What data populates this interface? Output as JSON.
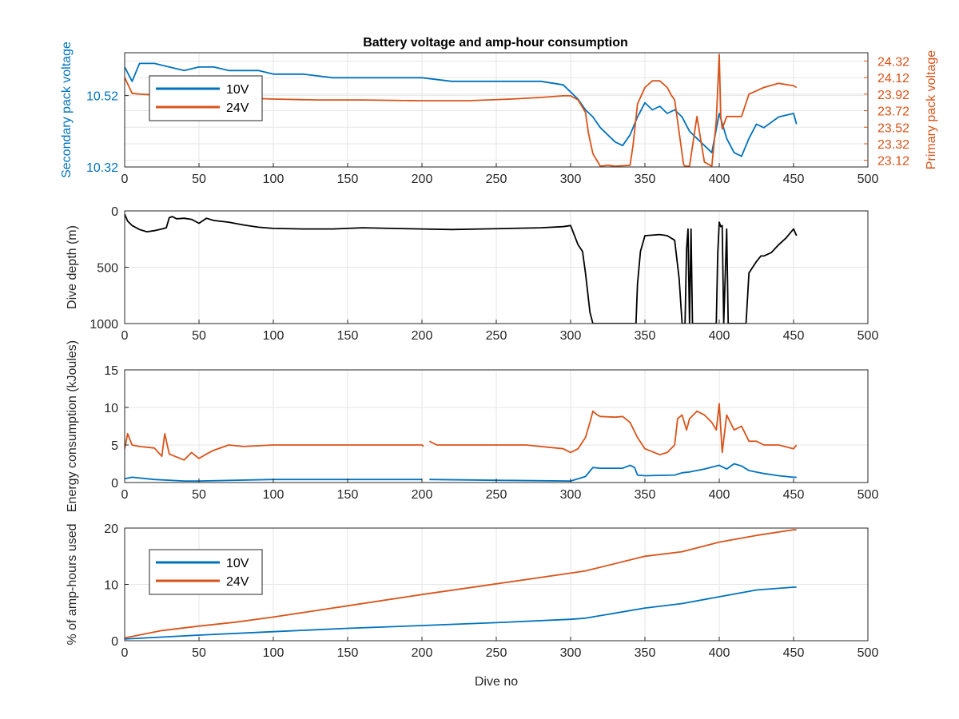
{
  "figure": {
    "title": "Battery voltage and amp-hour consumption",
    "colors": {
      "series_10v": "#0072BD",
      "series_24v": "#D95319",
      "depth": "#000000",
      "left_axis": "#0072BD",
      "right_axis": "#D95319"
    }
  },
  "chart_data": [
    {
      "type": "line",
      "id": "voltage",
      "title": "Battery voltage and amp-hour consumption",
      "xlabel": "",
      "ylabel": "Secondary pack voltage",
      "ylabel_right": "Primary pack voltage",
      "xlim": [
        0,
        500
      ],
      "xticks": [
        0,
        50,
        100,
        150,
        200,
        250,
        300,
        350,
        400,
        450,
        500
      ],
      "ylim": [
        10.32,
        10.64
      ],
      "yticks": [
        10.32,
        10.52
      ],
      "ylim_right": [
        23.04,
        24.42
      ],
      "yticks_right": [
        23.12,
        23.32,
        23.52,
        23.72,
        23.92,
        24.12,
        24.32
      ],
      "grid": true,
      "legend": {
        "placement": "top-left",
        "entries": [
          "10V",
          "24V"
        ]
      },
      "series": [
        {
          "name": "10V",
          "axis": "left",
          "color": "#0072BD",
          "x": [
            0,
            5,
            10,
            20,
            30,
            40,
            50,
            60,
            70,
            80,
            90,
            100,
            120,
            140,
            160,
            180,
            200,
            220,
            240,
            260,
            280,
            295,
            300,
            305,
            310,
            315,
            320,
            325,
            330,
            335,
            340,
            345,
            350,
            355,
            360,
            365,
            370,
            375,
            380,
            385,
            390,
            395,
            400,
            405,
            410,
            415,
            420,
            425,
            430,
            440,
            450,
            452
          ],
          "y": [
            10.6,
            10.56,
            10.61,
            10.61,
            10.6,
            10.59,
            10.6,
            10.6,
            10.59,
            10.59,
            10.59,
            10.58,
            10.58,
            10.57,
            10.57,
            10.57,
            10.57,
            10.56,
            10.56,
            10.56,
            10.56,
            10.55,
            10.53,
            10.51,
            10.48,
            10.46,
            10.43,
            10.41,
            10.39,
            10.38,
            10.41,
            10.46,
            10.5,
            10.48,
            10.49,
            10.47,
            10.48,
            10.46,
            10.42,
            10.4,
            10.38,
            10.36,
            10.47,
            10.4,
            10.36,
            10.35,
            10.4,
            10.44,
            10.43,
            10.46,
            10.47,
            10.44
          ]
        },
        {
          "name": "24V",
          "axis": "right",
          "color": "#D95319",
          "x": [
            0,
            5,
            10,
            30,
            50,
            70,
            100,
            130,
            160,
            200,
            230,
            260,
            280,
            295,
            300,
            305,
            310,
            312,
            315,
            320,
            325,
            330,
            340,
            342,
            345,
            350,
            355,
            360,
            365,
            368,
            370,
            375,
            376,
            377,
            380,
            385,
            390,
            395,
            398,
            400,
            401,
            402,
            405,
            410,
            415,
            420,
            425,
            430,
            440,
            450,
            452
          ],
          "y": [
            24.12,
            23.93,
            23.92,
            23.9,
            23.89,
            23.88,
            23.86,
            23.85,
            23.85,
            23.84,
            23.84,
            23.86,
            23.88,
            23.9,
            23.9,
            23.85,
            23.7,
            23.45,
            23.2,
            23.05,
            23.06,
            23.05,
            23.06,
            23.3,
            23.8,
            24.0,
            24.08,
            24.08,
            24.0,
            23.9,
            23.85,
            23.2,
            23.07,
            23.05,
            23.05,
            23.65,
            23.1,
            23.05,
            23.6,
            24.4,
            23.65,
            23.5,
            23.65,
            23.65,
            23.65,
            23.92,
            23.96,
            24.0,
            24.05,
            24.02,
            24.0
          ]
        }
      ]
    },
    {
      "type": "line",
      "id": "depth",
      "xlabel": "",
      "ylabel": "Dive depth (m)",
      "xlim": [
        0,
        500
      ],
      "xticks": [
        0,
        50,
        100,
        150,
        200,
        250,
        300,
        350,
        400,
        450,
        500
      ],
      "ylim": [
        0,
        1000
      ],
      "ylim_reversed": true,
      "yticks": [
        0,
        500,
        1000
      ],
      "grid": true,
      "series": [
        {
          "name": "",
          "color": "#000000",
          "x": [
            0,
            2,
            5,
            10,
            15,
            20,
            25,
            28,
            30,
            32,
            35,
            40,
            45,
            50,
            55,
            60,
            70,
            80,
            90,
            100,
            120,
            140,
            160,
            180,
            200,
            220,
            240,
            260,
            280,
            295,
            300,
            305,
            308,
            310,
            313,
            315,
            316,
            320,
            330,
            340,
            344,
            345,
            347,
            350,
            360,
            365,
            370,
            373,
            375,
            377,
            378,
            379,
            380,
            381,
            382,
            383,
            390,
            398,
            399,
            400,
            401,
            402,
            403,
            405,
            406,
            410,
            414,
            415,
            416,
            417,
            418,
            420,
            425,
            428,
            430,
            435,
            440,
            445,
            450,
            452
          ],
          "y": [
            30,
            90,
            130,
            165,
            185,
            175,
            160,
            150,
            60,
            50,
            70,
            65,
            75,
            110,
            65,
            85,
            100,
            125,
            145,
            155,
            160,
            160,
            150,
            155,
            160,
            165,
            160,
            155,
            150,
            140,
            130,
            300,
            360,
            550,
            900,
            1000,
            1000,
            1000,
            1000,
            1000,
            1000,
            650,
            360,
            220,
            210,
            220,
            260,
            600,
            1000,
            1000,
            340,
            160,
            1000,
            160,
            1000,
            1000,
            1000,
            1000,
            380,
            100,
            140,
            130,
            1000,
            160,
            1000,
            1000,
            1000,
            1000,
            1000,
            1000,
            1000,
            550,
            450,
            400,
            400,
            370,
            300,
            240,
            160,
            220
          ]
        }
      ]
    },
    {
      "type": "line",
      "id": "energy",
      "xlabel": "",
      "ylabel": "Energy consumption (kJoules)",
      "xlim": [
        0,
        500
      ],
      "xticks": [
        0,
        50,
        100,
        150,
        200,
        250,
        300,
        350,
        400,
        450,
        500
      ],
      "ylim": [
        0,
        15
      ],
      "yticks": [
        0,
        5,
        10,
        15
      ],
      "grid": true,
      "series": [
        {
          "name": "24V",
          "color": "#D95319",
          "x": [
            0,
            2,
            5,
            10,
            20,
            25,
            27,
            30,
            40,
            45,
            50,
            55,
            60,
            70,
            80,
            100,
            130,
            160,
            190,
            200,
            201,
            202,
            203,
            204,
            205,
            210,
            240,
            270,
            295,
            300,
            305,
            310,
            313,
            315,
            318,
            320,
            330,
            335,
            340,
            345,
            350,
            360,
            365,
            370,
            372,
            375,
            378,
            380,
            385,
            390,
            395,
            398,
            400,
            402,
            405,
            410,
            415,
            420,
            425,
            430,
            440,
            450,
            452
          ],
          "y": [
            4.5,
            6.5,
            5.0,
            4.8,
            4.6,
            3.5,
            6.5,
            3.8,
            3.0,
            4.0,
            3.2,
            3.8,
            4.3,
            5.0,
            4.8,
            5.0,
            5.0,
            5.0,
            5.0,
            5.0,
            4.8,
            null,
            null,
            null,
            5.5,
            5.0,
            5.0,
            5.0,
            4.5,
            4.0,
            4.5,
            6.0,
            8.0,
            9.5,
            9.0,
            8.8,
            8.7,
            8.8,
            8.0,
            6.0,
            4.5,
            3.7,
            4.0,
            5.0,
            8.5,
            9.0,
            7.0,
            8.5,
            9.5,
            9.0,
            8.0,
            7.0,
            10.5,
            4.0,
            9.0,
            7.0,
            7.5,
            5.5,
            5.5,
            5.0,
            5.0,
            4.5,
            5.0
          ]
        },
        {
          "name": "10V",
          "color": "#0072BD",
          "x": [
            0,
            5,
            20,
            40,
            50,
            100,
            150,
            200,
            202,
            203,
            204,
            205,
            250,
            300,
            310,
            315,
            320,
            335,
            340,
            343,
            345,
            350,
            370,
            375,
            380,
            390,
            400,
            405,
            410,
            415,
            420,
            430,
            440,
            450,
            452
          ],
          "y": [
            0.5,
            0.7,
            0.4,
            0.2,
            0.2,
            0.4,
            0.4,
            0.4,
            null,
            null,
            null,
            0.4,
            0.3,
            0.2,
            0.8,
            2.0,
            1.9,
            1.9,
            2.3,
            2.0,
            1.0,
            0.9,
            1.0,
            1.3,
            1.4,
            1.8,
            2.3,
            1.8,
            2.5,
            2.2,
            1.6,
            1.2,
            0.9,
            0.7,
            0.7
          ]
        }
      ]
    },
    {
      "type": "line",
      "id": "amphours",
      "xlabel": "Dive no",
      "ylabel": "% of amp-hours used",
      "xlim": [
        0,
        500
      ],
      "xticks": [
        0,
        50,
        100,
        150,
        200,
        250,
        300,
        350,
        400,
        450,
        500
      ],
      "ylim": [
        0,
        20
      ],
      "yticks": [
        0,
        10,
        20
      ],
      "grid": true,
      "legend": {
        "placement": "top-left",
        "entries": [
          "10V",
          "24V"
        ]
      },
      "series": [
        {
          "name": "10V",
          "color": "#0072BD",
          "x": [
            0,
            50,
            100,
            150,
            200,
            250,
            300,
            310,
            350,
            375,
            400,
            425,
            450,
            452
          ],
          "y": [
            0.3,
            1.0,
            1.6,
            2.2,
            2.7,
            3.2,
            3.8,
            4.0,
            5.8,
            6.6,
            7.8,
            9.0,
            9.5,
            9.5
          ]
        },
        {
          "name": "24V",
          "color": "#D95319",
          "x": [
            0,
            25,
            50,
            75,
            100,
            150,
            200,
            250,
            300,
            310,
            350,
            375,
            400,
            425,
            450,
            452
          ],
          "y": [
            0.5,
            1.8,
            2.6,
            3.3,
            4.2,
            6.2,
            8.2,
            10.1,
            12.0,
            12.4,
            15.0,
            15.8,
            17.5,
            18.7,
            19.7,
            19.7
          ]
        }
      ]
    }
  ]
}
